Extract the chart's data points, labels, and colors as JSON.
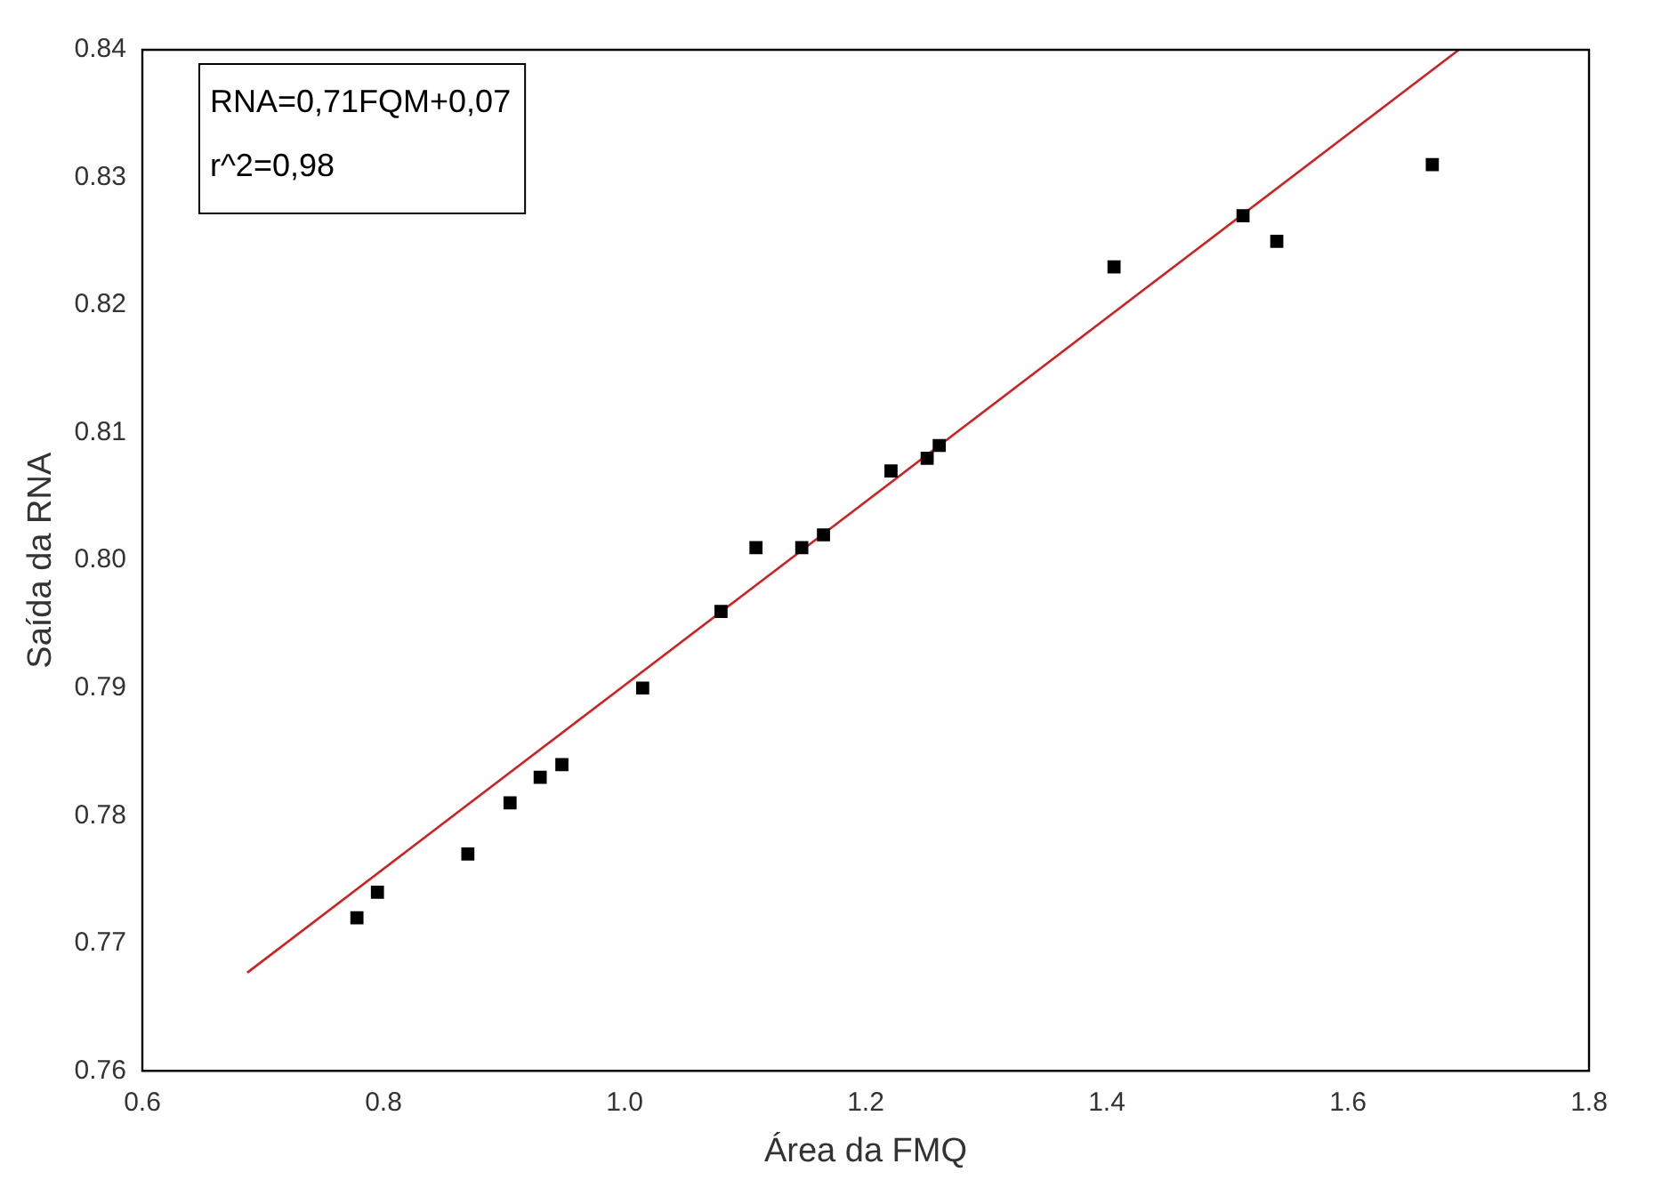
{
  "chart_data": {
    "type": "scatter",
    "xlabel": "Área da FMQ",
    "ylabel": "Saída da RNA",
    "xlim": [
      0.6,
      1.8
    ],
    "xticks": [
      {
        "value": 0.6,
        "label": "0.6"
      },
      {
        "value": 0.8,
        "label": "0.8"
      },
      {
        "value": 1.0,
        "label": "1.0"
      },
      {
        "value": 1.2,
        "label": "1.2"
      },
      {
        "value": 1.4,
        "label": "1.4"
      },
      {
        "value": 1.6,
        "label": "1.6"
      },
      {
        "value": 1.8,
        "label": "1.8"
      }
    ],
    "ylim": [
      0.76,
      0.84
    ],
    "yticks": [
      {
        "value": 0.76,
        "label": "0.76"
      },
      {
        "value": 0.77,
        "label": "0.77"
      },
      {
        "value": 0.78,
        "label": "0.78"
      },
      {
        "value": 0.79,
        "label": "0.79"
      },
      {
        "value": 0.8,
        "label": "0.80"
      },
      {
        "value": 0.81,
        "label": "0.81"
      },
      {
        "value": 0.82,
        "label": "0.82"
      },
      {
        "value": 0.83,
        "label": "0.83"
      },
      {
        "value": 0.84,
        "label": "0.84"
      }
    ],
    "grid": false,
    "legend": false,
    "series": [
      {
        "color": "#000000",
        "marker": "square",
        "x": [
          0.778,
          0.795,
          0.87,
          0.905,
          0.93,
          0.948,
          1.015,
          1.08,
          1.109,
          1.147,
          1.165,
          1.221,
          1.251,
          1.261,
          1.406,
          1.513,
          1.541,
          1.67
        ],
        "values": [
          0.772,
          0.774,
          0.777,
          0.781,
          0.783,
          0.784,
          0.79,
          0.796,
          0.801,
          0.801,
          0.802,
          0.807,
          0.808,
          0.809,
          0.823,
          0.827,
          0.825,
          0.831
        ]
      },
      {
        "type": "line",
        "color": "#cc2222",
        "marker": "none",
        "x": [
          0.687,
          1.692
        ],
        "values": [
          0.7677,
          0.84
        ]
      }
    ],
    "annotations": [
      "RNA=0,71FQM+0,07",
      "r^2=0,98"
    ]
  }
}
